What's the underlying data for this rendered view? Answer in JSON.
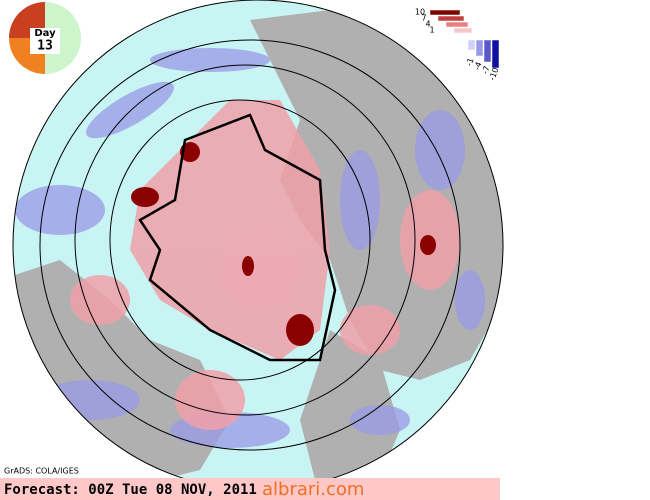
{
  "badge": {
    "label": "Day",
    "number": "13"
  },
  "legend": {
    "labels": [
      "10",
      "7",
      "4",
      "1",
      "-1",
      "-4",
      "-7",
      "-10"
    ]
  },
  "footer": {
    "credit": "GrADS: COLA/IGES",
    "forecast": "Forecast: 00Z Tue 08 NOV, 2011",
    "watermark": "albrari.com"
  }
}
